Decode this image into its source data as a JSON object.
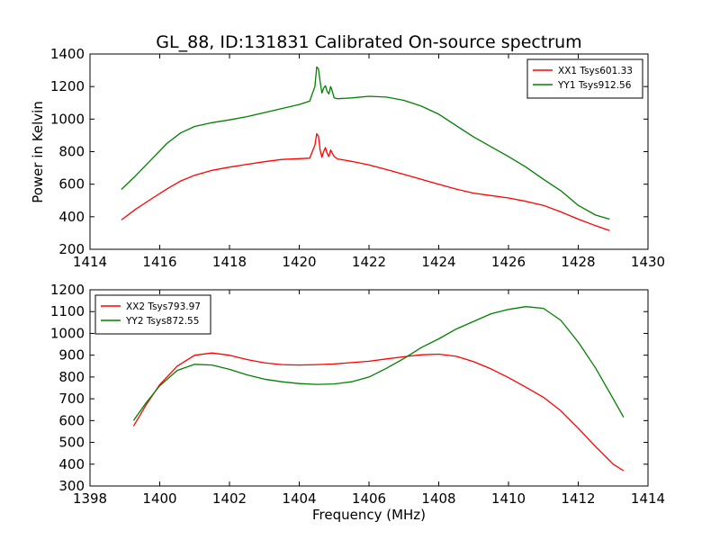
{
  "figure_title": "GL_88, ID:131831 Calibrated On-source spectrum",
  "ylabel": "Power in Kelvin",
  "xlabel": "Frequency (MHz)",
  "colors": {
    "xx": "#ff0000",
    "yy": "#008000"
  },
  "chart_data": [
    {
      "type": "line",
      "title": "GL_88, ID:131831 Calibrated On-source spectrum",
      "xlabel": "",
      "ylabel": "Power in Kelvin",
      "xlim": [
        1414,
        1430
      ],
      "ylim": [
        200,
        1400
      ],
      "xticks": [
        1414,
        1416,
        1418,
        1420,
        1422,
        1424,
        1426,
        1428,
        1430
      ],
      "yticks": [
        200,
        400,
        600,
        800,
        1000,
        1200,
        1400
      ],
      "legend_position": "top-right",
      "grid": false,
      "series": [
        {
          "name": "XX1 Tsys601.33",
          "color": "#ff0000",
          "x": [
            1414.9,
            1415.3,
            1415.8,
            1416.2,
            1416.6,
            1417.0,
            1417.5,
            1418.0,
            1418.5,
            1419.0,
            1419.5,
            1420.0,
            1420.3,
            1420.45,
            1420.5,
            1420.55,
            1420.6,
            1420.65,
            1420.7,
            1420.75,
            1420.8,
            1420.85,
            1420.9,
            1420.95,
            1421.0,
            1421.1,
            1421.5,
            1422.0,
            1422.5,
            1423.0,
            1423.5,
            1424.0,
            1424.5,
            1425.0,
            1425.5,
            1426.0,
            1426.5,
            1427.0,
            1427.5,
            1428.0,
            1428.5,
            1428.9
          ],
          "y": [
            380,
            445,
            515,
            570,
            620,
            655,
            685,
            705,
            722,
            738,
            752,
            757,
            760,
            840,
            910,
            895,
            810,
            765,
            800,
            825,
            790,
            770,
            810,
            790,
            770,
            755,
            740,
            718,
            690,
            660,
            630,
            600,
            570,
            545,
            530,
            515,
            495,
            470,
            430,
            385,
            345,
            315
          ]
        },
        {
          "name": "YY1 Tsys912.56",
          "color": "#008000",
          "x": [
            1414.9,
            1415.3,
            1415.8,
            1416.2,
            1416.6,
            1417.0,
            1417.5,
            1418.0,
            1418.5,
            1419.0,
            1419.5,
            1420.0,
            1420.3,
            1420.45,
            1420.5,
            1420.55,
            1420.6,
            1420.65,
            1420.7,
            1420.75,
            1420.8,
            1420.85,
            1420.9,
            1420.95,
            1421.0,
            1421.1,
            1421.5,
            1422.0,
            1422.5,
            1423.0,
            1423.5,
            1424.0,
            1424.5,
            1425.0,
            1425.5,
            1426.0,
            1426.5,
            1427.0,
            1427.5,
            1428.0,
            1428.5,
            1428.9
          ],
          "y": [
            568,
            650,
            760,
            850,
            915,
            955,
            978,
            995,
            1015,
            1040,
            1065,
            1090,
            1110,
            1200,
            1320,
            1310,
            1230,
            1160,
            1190,
            1205,
            1170,
            1155,
            1200,
            1170,
            1130,
            1125,
            1130,
            1140,
            1135,
            1115,
            1080,
            1030,
            960,
            890,
            830,
            770,
            705,
            630,
            560,
            470,
            410,
            385
          ]
        }
      ]
    },
    {
      "type": "line",
      "title": "",
      "xlabel": "Frequency (MHz)",
      "ylabel": "",
      "xlim": [
        1398,
        1414
      ],
      "ylim": [
        300,
        1200
      ],
      "xticks": [
        1398,
        1400,
        1402,
        1404,
        1406,
        1408,
        1410,
        1412,
        1414
      ],
      "yticks": [
        300,
        400,
        500,
        600,
        700,
        800,
        900,
        1000,
        1100,
        1200
      ],
      "legend_position": "top-left",
      "grid": false,
      "series": [
        {
          "name": "XX2 Tsys793.97",
          "color": "#ff0000",
          "x": [
            1399.25,
            1399.6,
            1400.0,
            1400.5,
            1401.0,
            1401.5,
            1402.0,
            1402.5,
            1403.0,
            1403.5,
            1404.0,
            1404.5,
            1405.0,
            1405.5,
            1406.0,
            1406.5,
            1407.0,
            1407.5,
            1408.0,
            1408.5,
            1409.0,
            1409.5,
            1410.0,
            1410.5,
            1411.0,
            1411.5,
            1412.0,
            1412.5,
            1413.0,
            1413.3
          ],
          "y": [
            575,
            670,
            765,
            850,
            900,
            910,
            900,
            880,
            865,
            857,
            855,
            857,
            860,
            866,
            872,
            883,
            893,
            902,
            905,
            895,
            870,
            837,
            797,
            753,
            707,
            645,
            565,
            480,
            400,
            370
          ]
        },
        {
          "name": "YY2 Tsys872.55",
          "color": "#008000",
          "x": [
            1399.25,
            1399.6,
            1400.0,
            1400.5,
            1401.0,
            1401.5,
            1402.0,
            1402.5,
            1403.0,
            1403.5,
            1404.0,
            1404.5,
            1405.0,
            1405.5,
            1406.0,
            1406.5,
            1407.0,
            1407.5,
            1408.0,
            1408.5,
            1409.0,
            1409.5,
            1410.0,
            1410.5,
            1411.0,
            1411.5,
            1412.0,
            1412.5,
            1413.0,
            1413.3
          ],
          "y": [
            600,
            680,
            760,
            830,
            858,
            855,
            835,
            810,
            790,
            778,
            770,
            766,
            768,
            778,
            800,
            840,
            885,
            935,
            975,
            1020,
            1055,
            1090,
            1110,
            1123,
            1115,
            1060,
            960,
            840,
            700,
            615
          ]
        }
      ]
    }
  ]
}
